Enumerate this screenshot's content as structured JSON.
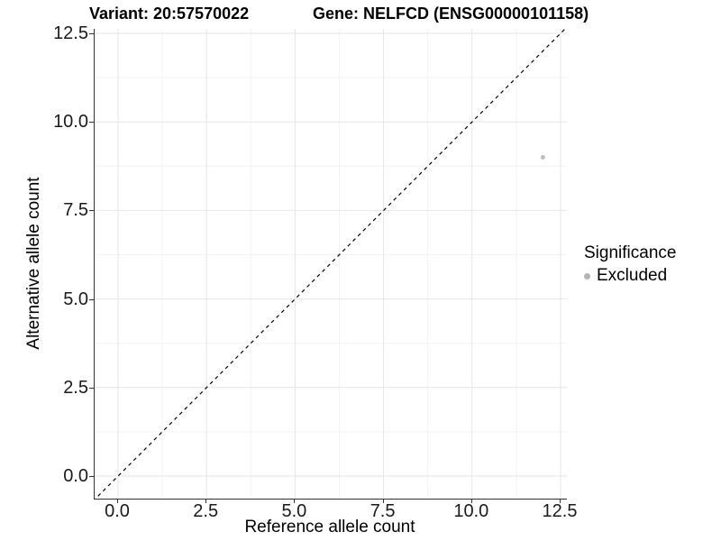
{
  "chart_data": {
    "type": "scatter",
    "title_left": "Variant: 20:57570022",
    "title_right": "Gene: NELFCD (ENSG00000101158)",
    "xlabel": "Reference allele count",
    "ylabel": "Alternative allele count",
    "x_ticks": {
      "values": [
        0,
        2.5,
        5,
        7.5,
        10,
        12.5
      ],
      "labels": [
        "0.0",
        "2.5",
        "5.0",
        "7.5",
        "10.0",
        "12.5"
      ]
    },
    "y_ticks": {
      "values": [
        0,
        2.5,
        5,
        7.5,
        10,
        12.5
      ],
      "labels": [
        "0.0",
        "2.5",
        "5.0",
        "7.5",
        "10.0",
        "12.5"
      ]
    },
    "x_minor_ticks": [
      1.25,
      3.75,
      6.25,
      8.75,
      11.25
    ],
    "y_minor_ticks": [
      1.25,
      3.75,
      6.25,
      8.75,
      11.25
    ],
    "xlim": [
      -0.66,
      12.7
    ],
    "ylim": [
      -0.64,
      12.64
    ],
    "grid": {
      "major_color": "#e6e6e6",
      "minor_color": "#f3f3f3",
      "show": true
    },
    "axis_line_color": "#333333",
    "abline": {
      "slope": 1,
      "intercept": 0,
      "style": "dashed",
      "color": "#000000",
      "dash": "4 4"
    },
    "series": [
      {
        "name": "Excluded",
        "color": "#bebebe",
        "point_radius": 2.5,
        "points": [
          {
            "x": 12,
            "y": 9
          }
        ]
      }
    ],
    "legend": {
      "title": "Significance",
      "position": "right",
      "items": [
        {
          "label": "Excluded",
          "color": "#b3b3b3"
        }
      ]
    }
  }
}
